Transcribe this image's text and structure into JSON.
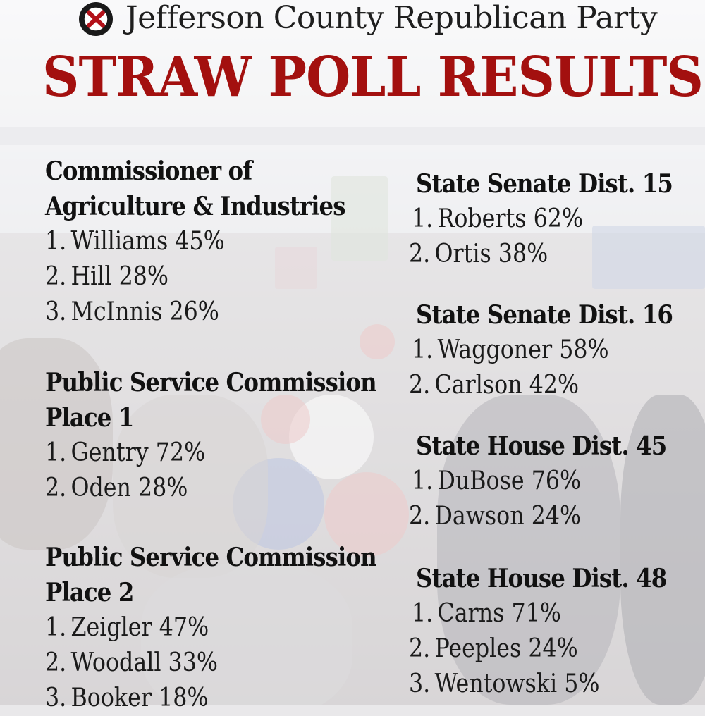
{
  "header": {
    "title": "Jefferson County Republican Party",
    "logo_text": "JEFFERSON COUNTY REPUBLICAN PARTY",
    "main_title": "STRAW POLL RESULTS"
  },
  "colors": {
    "title_red": "#a3100f",
    "text_dark": "#111111"
  },
  "races": [
    {
      "title_lines": [
        "Commissioner of",
        "Agriculture & Industries"
      ],
      "results": [
        {
          "rank": "1.",
          "name": "Williams",
          "percent": "45%"
        },
        {
          "rank": "2.",
          "name": "Hill",
          "percent": "28%"
        },
        {
          "rank": "3.",
          "name": "McInnis",
          "percent": "26%"
        }
      ]
    },
    {
      "title_lines": [
        "Public Service Commission",
        "Place 1"
      ],
      "results": [
        {
          "rank": "1.",
          "name": "Gentry",
          "percent": "72%"
        },
        {
          "rank": "2.",
          "name": "Oden",
          "percent": "28%"
        }
      ]
    },
    {
      "title_lines": [
        "Public Service Commission",
        "Place 2"
      ],
      "results": [
        {
          "rank": "1.",
          "name": "Zeigler",
          "percent": "47%"
        },
        {
          "rank": "2.",
          "name": "Woodall",
          "percent": "33%"
        },
        {
          "rank": "3.",
          "name": "Booker",
          "percent": "18%"
        }
      ]
    },
    {
      "title_lines": [
        "State Senate Dist. 15"
      ],
      "results": [
        {
          "rank": "1.",
          "name": "Roberts",
          "percent": "62%"
        },
        {
          "rank": "2.",
          "name": "Ortis",
          "percent": "38%"
        }
      ]
    },
    {
      "title_lines": [
        "State Senate Dist. 16"
      ],
      "results": [
        {
          "rank": "1.",
          "name": "Waggoner",
          "percent": "58%"
        },
        {
          "rank": "2.",
          "name": "Carlson",
          "percent": "42%"
        }
      ]
    },
    {
      "title_lines": [
        "State House Dist. 45"
      ],
      "results": [
        {
          "rank": "1.",
          "name": "DuBose",
          "percent": "76%"
        },
        {
          "rank": "2.",
          "name": "Dawson",
          "percent": "24%"
        }
      ]
    },
    {
      "title_lines": [
        "State House Dist. 48"
      ],
      "results": [
        {
          "rank": "1.",
          "name": "Carns",
          "percent": "71%"
        },
        {
          "rank": "2.",
          "name": "Peeples",
          "percent": "24%"
        },
        {
          "rank": "3.",
          "name": "Wentowski",
          "percent": "5%"
        }
      ]
    }
  ]
}
